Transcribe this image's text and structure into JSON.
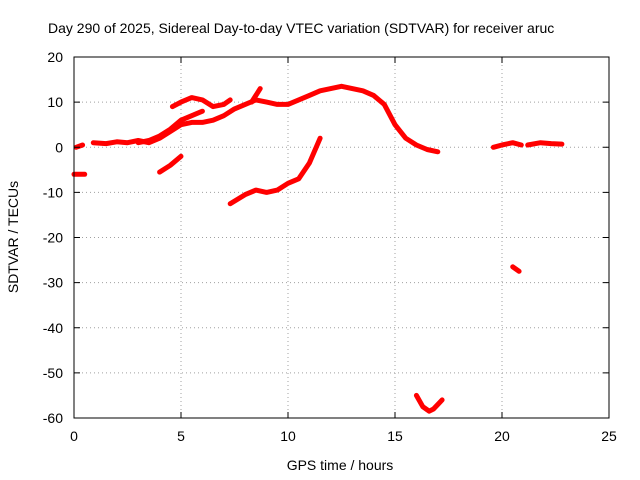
{
  "chart_data": {
    "type": "scatter",
    "title": "Day 290 of 2025, Sidereal Day-to-day VTEC variation (SDTVAR) for receiver aruc",
    "xlabel": "GPS time / hours",
    "ylabel": "SDTVAR / TECUs",
    "xlim": [
      0,
      25
    ],
    "ylim": [
      -60,
      20
    ],
    "xticks": [
      "0",
      "5",
      "10",
      "15",
      "20",
      "25"
    ],
    "yticks": [
      "20",
      "10",
      "0",
      "-10",
      "-20",
      "-30",
      "-40",
      "-50",
      "-60"
    ],
    "grid": true,
    "color": "#ff0000",
    "series": [
      {
        "name": "seg-a",
        "x": [
          0.0,
          0.5
        ],
        "y": [
          -6,
          -6
        ]
      },
      {
        "name": "seg-b",
        "x": [
          0.1,
          0.4
        ],
        "y": [
          0,
          0.5
        ]
      },
      {
        "name": "seg-c",
        "x": [
          0.9,
          1.5,
          2.0,
          2.5,
          3.0,
          3.5,
          4.0,
          4.5,
          5.0,
          5.5,
          6.0,
          6.5,
          7.0,
          7.5,
          8.0,
          8.5,
          9.0,
          9.5,
          10.0,
          10.5,
          11.0,
          11.5,
          12.0,
          12.5,
          13.0,
          13.5,
          14.0,
          14.5,
          15.0,
          15.5,
          16.0,
          16.5,
          17.0
        ],
        "y": [
          1,
          0.8,
          1.2,
          1.0,
          1.5,
          1.0,
          2.0,
          3.5,
          5.0,
          5.5,
          5.5,
          6.0,
          7.0,
          8.5,
          9.5,
          10.5,
          10.0,
          9.5,
          9.5,
          10.5,
          11.5,
          12.5,
          13.0,
          13.5,
          13.0,
          12.5,
          11.5,
          9.5,
          5.0,
          2.0,
          0.5,
          -0.5,
          -1.0
        ]
      },
      {
        "name": "seg-d",
        "x": [
          3.0,
          3.5,
          4.0,
          4.5,
          5.0,
          5.5,
          6.0
        ],
        "y": [
          1,
          1.5,
          2.5,
          4.0,
          6.0,
          7.0,
          8.0
        ]
      },
      {
        "name": "seg-e",
        "x": [
          4.6,
          5.0,
          5.5,
          6.0,
          6.5,
          7.0,
          7.3
        ],
        "y": [
          9,
          10,
          11,
          10.5,
          9,
          9.5,
          10.5
        ]
      },
      {
        "name": "seg-f",
        "x": [
          8.3,
          8.5,
          8.7
        ],
        "y": [
          10,
          11.5,
          13
        ]
      },
      {
        "name": "seg-g",
        "x": [
          4.0,
          4.5,
          5.0
        ],
        "y": [
          -5.5,
          -4.0,
          -2.0
        ]
      },
      {
        "name": "seg-h",
        "x": [
          7.3,
          8.0,
          8.5,
          9.0,
          9.5,
          10.0,
          10.5,
          11.0,
          11.5
        ],
        "y": [
          -12.5,
          -10.5,
          -9.5,
          -10.0,
          -9.5,
          -8.0,
          -7.0,
          -3.5,
          2.0
        ]
      },
      {
        "name": "seg-i",
        "x": [
          19.6,
          20.0,
          20.5,
          20.9
        ],
        "y": [
          0.0,
          0.5,
          1.0,
          0.5
        ]
      },
      {
        "name": "seg-j",
        "x": [
          21.2,
          21.8,
          22.3,
          22.8
        ],
        "y": [
          0.5,
          1.0,
          0.8,
          0.7
        ]
      },
      {
        "name": "seg-k",
        "x": [
          20.5,
          20.8
        ],
        "y": [
          -26.5,
          -27.5
        ]
      },
      {
        "name": "seg-l",
        "x": [
          16.0,
          16.3,
          16.6,
          16.8,
          17.0,
          17.2
        ],
        "y": [
          -55,
          -57.5,
          -58.5,
          -58.0,
          -57.0,
          -56.0
        ]
      }
    ]
  }
}
